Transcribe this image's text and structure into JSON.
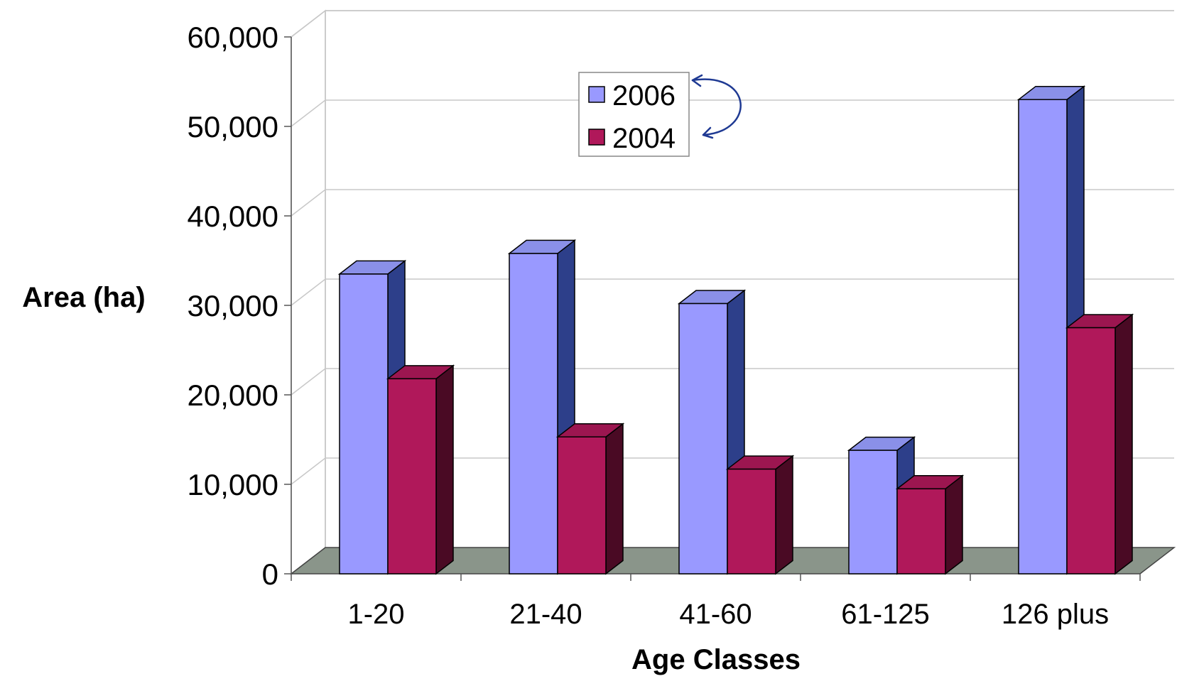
{
  "chart_data": {
    "type": "bar",
    "title": "",
    "xlabel": "Age Classes",
    "ylabel": "Area (ha)",
    "ylim": [
      0,
      60000
    ],
    "yticks": [
      "0",
      "10,000",
      "20,000",
      "30,000",
      "40,000",
      "50,000",
      "60,000"
    ],
    "ytick_values": [
      0,
      10000,
      20000,
      30000,
      40000,
      50000,
      60000
    ],
    "categories": [
      "1-20",
      "21-40",
      "41-60",
      "61-125",
      "126 plus"
    ],
    "series": [
      {
        "name": "2006",
        "values": [
          33500,
          35800,
          30200,
          13800,
          53000
        ],
        "color": "#9999ff",
        "side_color": "#2d3f8a",
        "top_color": "#8a90e8"
      },
      {
        "name": "2004",
        "values": [
          21800,
          15300,
          11700,
          9500,
          27500
        ],
        "color": "#b0185a",
        "side_color": "#4a0a24",
        "top_color": "#9c1650"
      }
    ],
    "legend_placement": "top-center",
    "grid": true,
    "floor_color": "#8a958a",
    "annotation": "hand-drawn arrow swapping legend entries"
  }
}
